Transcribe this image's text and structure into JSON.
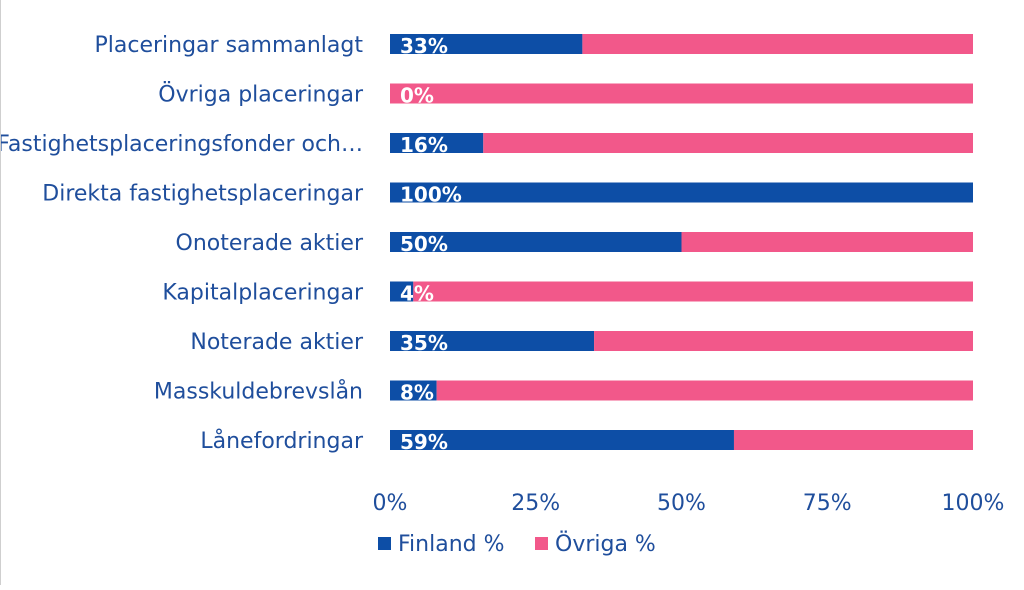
{
  "chart_data": {
    "type": "bar",
    "orientation": "horizontal",
    "stacked": true,
    "categories": [
      "Placeringar sammanlagt",
      "Övriga placeringar",
      "Fastighetsplaceringsfonder och…",
      "Direkta fastighetsplaceringar",
      "Onoterade aktier",
      "Kapitalplaceringar",
      "Noterade aktier",
      "Masskuldebrevslån",
      "Lånefordringar"
    ],
    "series": [
      {
        "name": "Finland %",
        "color": "#0d4ea6",
        "values": [
          33,
          0,
          16,
          100,
          50,
          4,
          35,
          8,
          59
        ]
      },
      {
        "name": "Övriga %",
        "color": "#f2588a",
        "values": [
          67,
          100,
          84,
          0,
          50,
          96,
          65,
          92,
          41
        ]
      }
    ],
    "data_labels": [
      "33%",
      "0%",
      "16%",
      "100%",
      "50%",
      "4%",
      "35%",
      "8%",
      "59%"
    ],
    "xlim": [
      0,
      100
    ],
    "x_ticks": [
      "0%",
      "25%",
      "50%",
      "75%",
      "100%"
    ],
    "grid": false,
    "legend_position": "bottom"
  }
}
